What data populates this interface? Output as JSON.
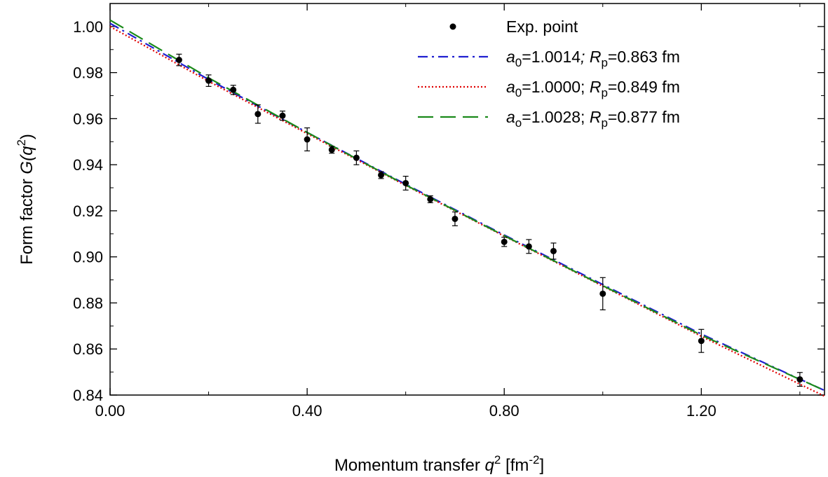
{
  "chart_data": {
    "type": "scatter",
    "xlabel_parts": [
      "Momentum transfer ",
      "q",
      "2",
      " [fm",
      "-2",
      "]"
    ],
    "ylabel_parts": [
      "Form factor ",
      "G(q",
      "2",
      ")"
    ],
    "xlim": [
      0.0,
      1.45
    ],
    "ylim": [
      0.84,
      1.01
    ],
    "x_ticks": [
      0.0,
      0.4,
      0.8,
      1.2
    ],
    "x_tick_labels": [
      "0.00",
      "0.40",
      "0.80",
      "1.20"
    ],
    "y_ticks": [
      0.84,
      0.86,
      0.88,
      0.9,
      0.92,
      0.94,
      0.96,
      0.98,
      1.0
    ],
    "y_tick_labels": [
      "0.84",
      "0.86",
      "0.88",
      "0.90",
      "0.92",
      "0.94",
      "0.96",
      "0.98",
      "1.00"
    ],
    "grid": false,
    "legend_position": "top-right",
    "points": {
      "name": "Exp. point",
      "color": "#000000",
      "x": [
        0.14,
        0.2,
        0.25,
        0.3,
        0.35,
        0.4,
        0.45,
        0.5,
        0.55,
        0.6,
        0.65,
        0.7,
        0.8,
        0.85,
        0.9,
        1.0,
        1.2,
        1.4
      ],
      "y": [
        0.9855,
        0.9765,
        0.9725,
        0.962,
        0.9613,
        0.951,
        0.9465,
        0.943,
        0.9355,
        0.932,
        0.925,
        0.9165,
        0.9065,
        0.9045,
        0.9025,
        0.884,
        0.8635,
        0.8468
      ],
      "err": [
        0.0025,
        0.0025,
        0.002,
        0.004,
        0.002,
        0.005,
        0.0015,
        0.003,
        0.0015,
        0.003,
        0.0015,
        0.003,
        0.002,
        0.003,
        0.0035,
        0.007,
        0.005,
        0.003
      ]
    },
    "series": [
      {
        "legend_parts": [
          "a",
          "0",
          "=1.0014",
          "; ",
          "R",
          "p",
          "=0.863 fm"
        ],
        "color": "#1f1fd0",
        "dash": "dashdot",
        "a0": 1.0014,
        "Rp_fm": 0.863,
        "x": [
          0.0,
          0.2,
          0.4,
          0.6,
          0.8,
          1.0,
          1.2,
          1.45
        ],
        "y": [
          1.0014,
          0.977,
          0.954,
          0.9315,
          0.9095,
          0.888,
          0.8665,
          0.842
        ]
      },
      {
        "legend_parts": [
          "a",
          "0",
          "=1.0000",
          "; ",
          "R",
          "p",
          "=0.849 fm"
        ],
        "color": "#e00000",
        "dash": "dotted",
        "a0": 1.0,
        "Rp_fm": 0.849,
        "x": [
          0.0,
          0.2,
          0.4,
          0.6,
          0.8,
          1.0,
          1.2,
          1.45
        ],
        "y": [
          1.0,
          0.9762,
          0.9535,
          0.931,
          0.909,
          0.8873,
          0.8655,
          0.8395
        ]
      },
      {
        "legend_parts": [
          "a",
          "o",
          "=1.0028",
          "; ",
          "R",
          "p",
          "=0.877 fm"
        ],
        "color": "#1a8a1a",
        "dash": "dashed",
        "a0": 1.0028,
        "Rp_fm": 0.877,
        "x": [
          0.0,
          0.2,
          0.4,
          0.6,
          0.8,
          1.0,
          1.2,
          1.45
        ],
        "y": [
          1.0028,
          0.9777,
          0.954,
          0.9312,
          0.9092,
          0.8875,
          0.866,
          0.842
        ]
      }
    ]
  }
}
